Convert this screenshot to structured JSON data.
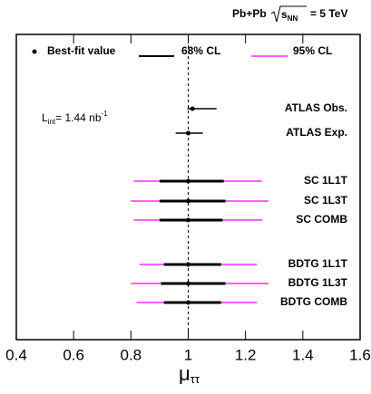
{
  "chart_data": {
    "type": "forest",
    "energy_label": {
      "prefix": "Pb+Pb",
      "root": "s",
      "root_sub": "NN",
      "suffix": "= 5 TeV"
    },
    "lumi_label": {
      "symbol": "L",
      "sub": "int",
      "text": "= 1.44 nb",
      "sup": "-1"
    },
    "xlabel": {
      "symbol": "μ",
      "sub": "ττ"
    },
    "legend": {
      "best_fit": "Best-fit value",
      "ci68": "68% CL",
      "ci95": "95% CL"
    },
    "categories": [
      "ATLAS Obs.",
      "ATLAS Exp.",
      "SC 1L1T",
      "SC 1L3T",
      "SC COMB",
      "BDTG 1L1T",
      "BDTG 1L3T",
      "BDTG COMB"
    ],
    "values": [
      1.015,
      1.0,
      1.0,
      1.0,
      1.0,
      1.0,
      1.0,
      1.0
    ],
    "ci68": [
      [
        0.997,
        1.099
      ],
      [
        0.956,
        1.051
      ],
      [
        0.9,
        1.124
      ],
      [
        0.9,
        1.13
      ],
      [
        0.9,
        1.12
      ],
      [
        0.915,
        1.115
      ],
      [
        0.905,
        1.13
      ],
      [
        0.915,
        1.115
      ]
    ],
    "ci95": [
      null,
      null,
      [
        0.81,
        1.257
      ],
      [
        0.8,
        1.28
      ],
      [
        0.81,
        1.26
      ],
      [
        0.83,
        1.24
      ],
      [
        0.8,
        1.28
      ],
      [
        0.82,
        1.24
      ]
    ],
    "ci68_color": "#000000",
    "ci95_color": "#ff00ff",
    "reference_line": 1,
    "xlim": [
      0.4,
      1.6
    ],
    "xticks": [
      0.4,
      0.6,
      0.8,
      1,
      1.2,
      1.4,
      1.6
    ]
  }
}
